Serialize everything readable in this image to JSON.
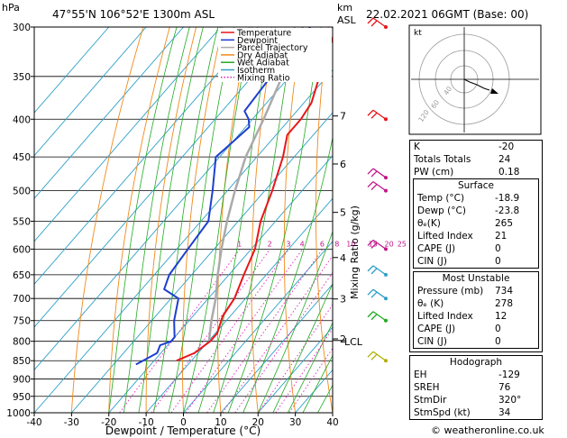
{
  "header": {
    "pressure_unit": "hPa",
    "location": "47°55'N  106°52'E  1300m  ASL",
    "km_unit": "km",
    "asl": "ASL",
    "datetime": "22.02.2021  06GMT  (Base: 00)"
  },
  "chart_data": {
    "type": "line",
    "title": "47°55'N  106°52'E  1300m  ASL",
    "xlabel": "Dewpoint / Temperature (°C)",
    "ylabel": "hPa",
    "xlim": [
      -40,
      40
    ],
    "ylim": [
      1000,
      300
    ],
    "y_scale": "log",
    "x_ticks": [
      -40,
      -30,
      -20,
      -10,
      0,
      10,
      20,
      30,
      40
    ],
    "p_ticks": [
      300,
      350,
      400,
      450,
      500,
      550,
      600,
      650,
      700,
      750,
      800,
      850,
      900,
      950,
      1000
    ],
    "km_ticks": [
      {
        "km": "7",
        "p": 396
      },
      {
        "km": "6",
        "p": 460
      },
      {
        "km": "5",
        "p": 535
      },
      {
        "km": "4",
        "p": 616
      },
      {
        "km": "3",
        "p": 701
      },
      {
        "km": "2",
        "p": 794
      }
    ],
    "lcl_label": "LCL",
    "lcl_p": 798,
    "mixing_ratio_label": "Mixing Ratio (g/kg)",
    "mixing_ratios": [
      "1",
      "2",
      "3",
      "4",
      "6",
      "8",
      "10",
      "15",
      "20",
      "25"
    ],
    "legend": [
      "Temperature",
      "Dewpoint",
      "Parcel Trajectory",
      "Dry Adiabat",
      "Wet Adiabat",
      "Isotherm",
      "Mixing Ratio"
    ],
    "series": [
      {
        "name": "Temperature",
        "color": "#e8161a",
        "points": [
          [
            300,
            -49
          ],
          [
            350,
            -42
          ],
          [
            380,
            -38
          ],
          [
            400,
            -37
          ],
          [
            420,
            -37
          ],
          [
            450,
            -33
          ],
          [
            500,
            -28
          ],
          [
            550,
            -24
          ],
          [
            600,
            -19
          ],
          [
            650,
            -16
          ],
          [
            700,
            -13
          ],
          [
            740,
            -12
          ],
          [
            780,
            -9.5
          ],
          [
            800,
            -9.5
          ],
          [
            830,
            -11
          ],
          [
            850,
            -14
          ]
        ]
      },
      {
        "name": "Dewpoint",
        "color": "#1e3fd0",
        "points": [
          [
            300,
            -56
          ],
          [
            350,
            -55
          ],
          [
            390,
            -54
          ],
          [
            400,
            -51
          ],
          [
            410,
            -49
          ],
          [
            430,
            -50
          ],
          [
            450,
            -51
          ],
          [
            500,
            -44
          ],
          [
            550,
            -38
          ],
          [
            600,
            -37
          ],
          [
            650,
            -36
          ],
          [
            680,
            -34
          ],
          [
            700,
            -28
          ],
          [
            750,
            -24
          ],
          [
            790,
            -20
          ],
          [
            800,
            -20
          ],
          [
            810,
            -22
          ],
          [
            830,
            -21
          ],
          [
            850,
            -23
          ],
          [
            860,
            -24
          ]
        ]
      },
      {
        "name": "Parcel Trajectory",
        "color": "#aaaaaa",
        "points": [
          [
            300,
            -58
          ],
          [
            350,
            -52
          ],
          [
            400,
            -47
          ],
          [
            450,
            -43
          ],
          [
            500,
            -38
          ],
          [
            550,
            -33
          ],
          [
            600,
            -28
          ],
          [
            650,
            -23
          ],
          [
            700,
            -18
          ],
          [
            750,
            -14
          ],
          [
            798,
            -10
          ]
        ]
      }
    ]
  },
  "wind_barbs": [
    {
      "p": 300,
      "color": "#e8161a"
    },
    {
      "p": 400,
      "color": "#e8161a"
    },
    {
      "p": 480,
      "color": "#c0168a"
    },
    {
      "p": 500,
      "color": "#c0168a"
    },
    {
      "p": 600,
      "color": "#c0168a"
    },
    {
      "p": 650,
      "color": "#2ea0c8"
    },
    {
      "p": 700,
      "color": "#2ea0c8"
    },
    {
      "p": 750,
      "color": "#22aa22"
    },
    {
      "p": 850,
      "color": "#b0b000"
    }
  ],
  "hodograph": {
    "label": "kt",
    "rings": [
      "40",
      "60",
      "120"
    ]
  },
  "indices": [
    {
      "label": "K",
      "value": "-20"
    },
    {
      "label": "Totals Totals",
      "value": "24"
    },
    {
      "label": "PW (cm)",
      "value": "0.18"
    }
  ],
  "surface": {
    "title": "Surface",
    "rows": [
      {
        "label": "Temp (°C)",
        "value": "-18.9"
      },
      {
        "label": "Dewp (°C)",
        "value": "-23.8"
      },
      {
        "label": "θₑ(K)",
        "value": "265"
      },
      {
        "label": "Lifted Index",
        "value": "21"
      },
      {
        "label": "CAPE (J)",
        "value": "0"
      },
      {
        "label": "CIN (J)",
        "value": "0"
      }
    ]
  },
  "most_unstable": {
    "title": "Most Unstable",
    "rows": [
      {
        "label": "Pressure (mb)",
        "value": "734"
      },
      {
        "label": "θₑ (K)",
        "value": "278"
      },
      {
        "label": "Lifted Index",
        "value": "12"
      },
      {
        "label": "CAPE (J)",
        "value": "0"
      },
      {
        "label": "CIN (J)",
        "value": "0"
      }
    ]
  },
  "hodograph_table": {
    "title": "Hodograph",
    "rows": [
      {
        "label": "EH",
        "value": "-129"
      },
      {
        "label": "SREH",
        "value": "76"
      },
      {
        "label": "StmDir",
        "value": "320°"
      },
      {
        "label": "StmSpd (kt)",
        "value": "34"
      }
    ]
  },
  "footer": "© weatheronline.co.uk"
}
